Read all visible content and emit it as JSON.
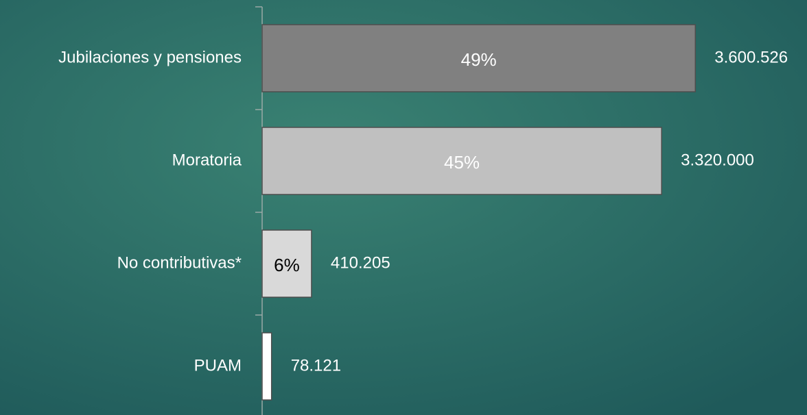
{
  "chart_data": {
    "type": "hbar",
    "categories": [
      "Jubilaciones y pensiones",
      "Moratoria",
      "No contributivas*",
      "PUAM"
    ],
    "values": [
      3600526,
      3320000,
      410205,
      78121
    ],
    "value_labels": [
      "3.600.526",
      "3.320.000",
      "410.205",
      "78.121"
    ],
    "shares": [
      49,
      45,
      6,
      null
    ],
    "share_labels": [
      "49%",
      "45%",
      "6%",
      null
    ],
    "colors": [
      "#808080",
      "#c0c0c0",
      "#d9d9d9",
      "#ffffff"
    ],
    "xlim": [
      0,
      4500000
    ]
  }
}
